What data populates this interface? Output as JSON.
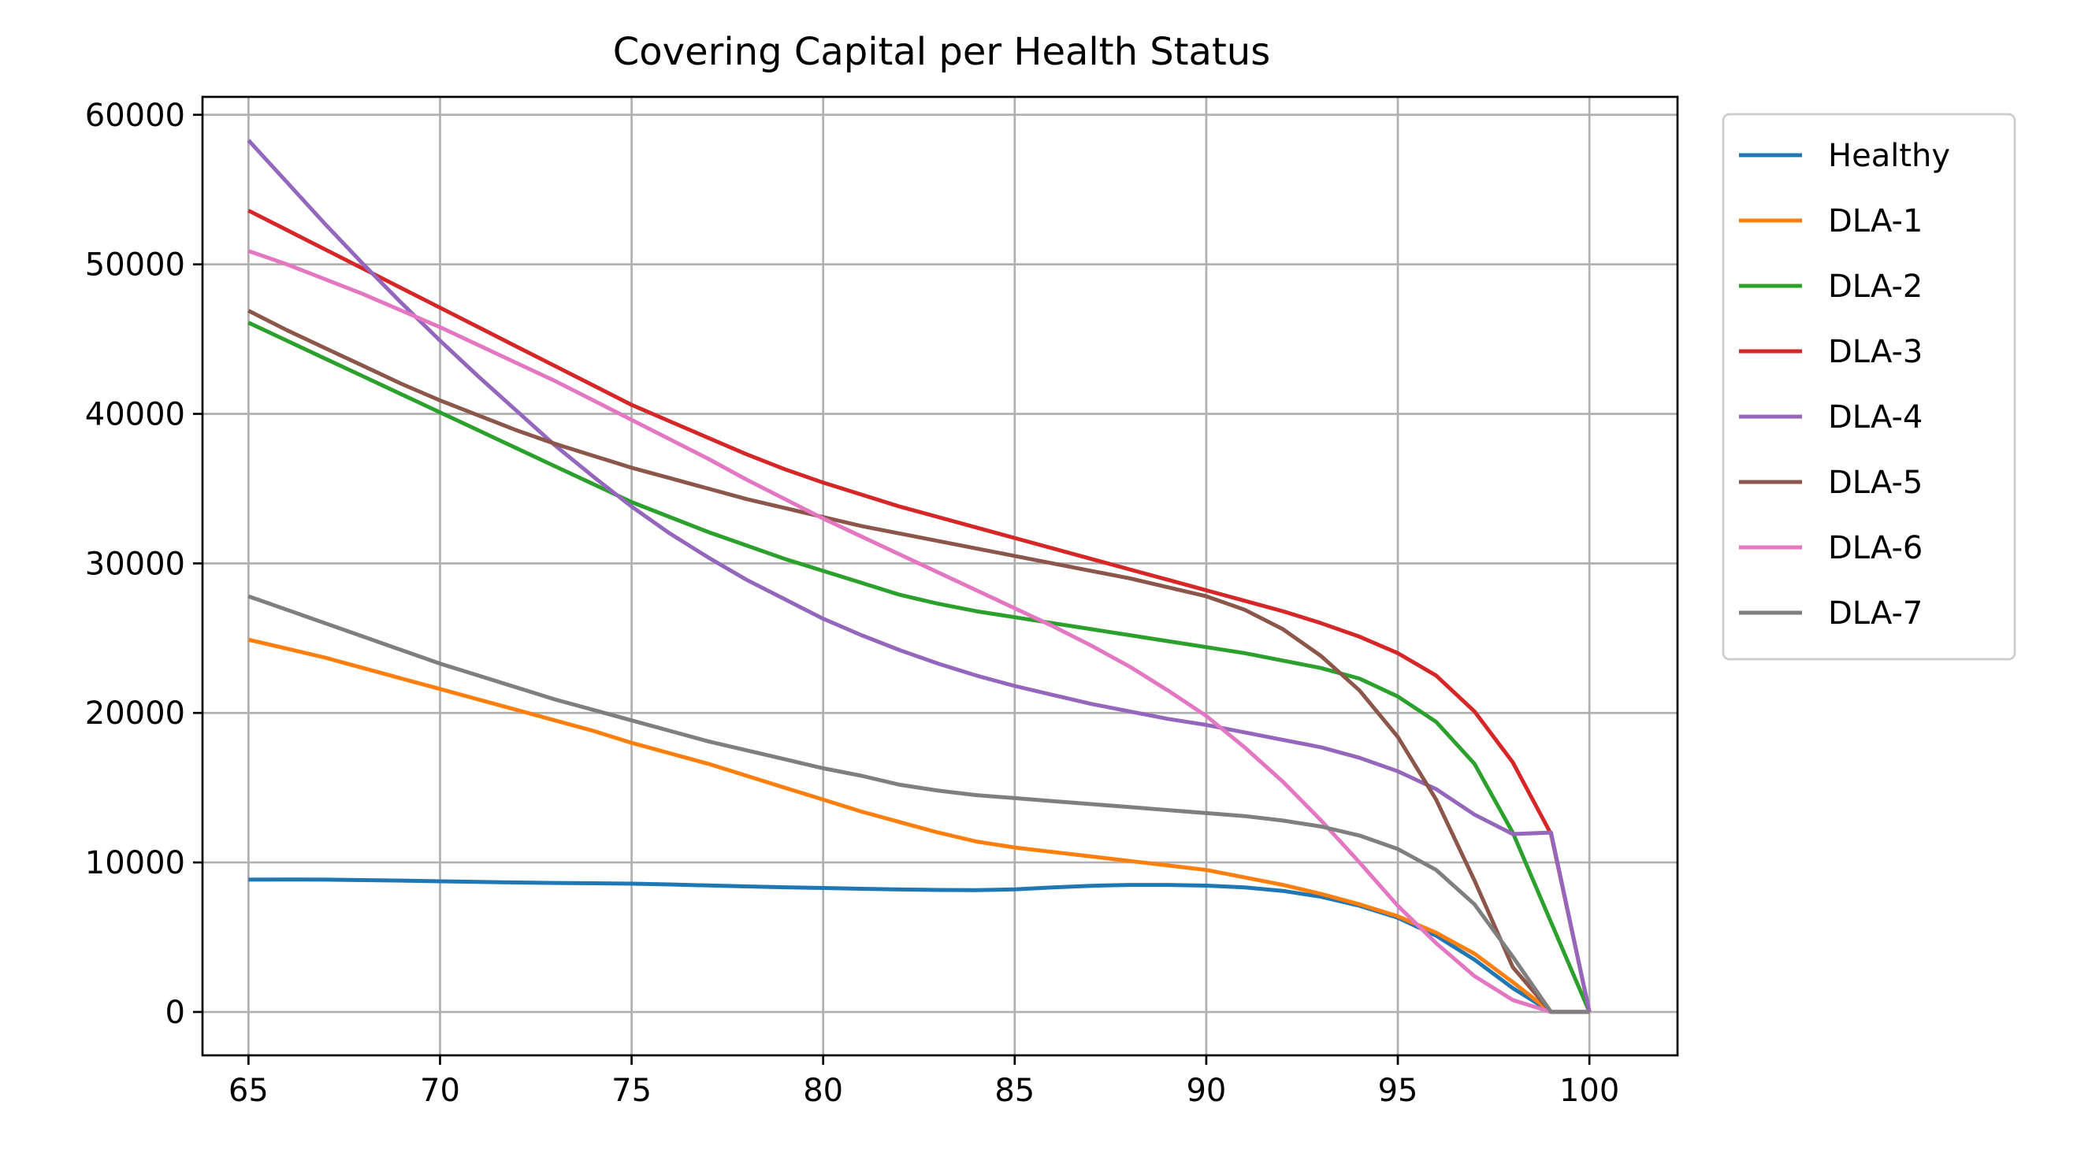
{
  "chart_data": {
    "type": "line",
    "title": "Covering Capital per Health Status",
    "xlabel": "",
    "ylabel": "",
    "xlim": [
      63.8,
      102.3
    ],
    "ylim": [
      -2900,
      61200
    ],
    "x_ticks": [
      65,
      70,
      75,
      80,
      85,
      90,
      95,
      100
    ],
    "y_ticks": [
      0,
      10000,
      20000,
      30000,
      40000,
      50000,
      60000
    ],
    "grid": true,
    "legend_position": "outside-right-top",
    "x": [
      65,
      66,
      67,
      68,
      69,
      70,
      71,
      72,
      73,
      74,
      75,
      76,
      77,
      78,
      79,
      80,
      81,
      82,
      83,
      84,
      85,
      86,
      87,
      88,
      89,
      90,
      91,
      92,
      93,
      94,
      95,
      96,
      97,
      98,
      99,
      100
    ],
    "series": [
      {
        "name": "Healthy",
        "color": "#1f77b4",
        "values": [
          8850,
          8860,
          8850,
          8820,
          8790,
          8740,
          8700,
          8660,
          8630,
          8610,
          8580,
          8530,
          8460,
          8400,
          8340,
          8290,
          8240,
          8190,
          8160,
          8150,
          8200,
          8330,
          8440,
          8500,
          8500,
          8450,
          8330,
          8100,
          7700,
          7100,
          6300,
          5100,
          3500,
          1600,
          0,
          0
        ]
      },
      {
        "name": "DLA-1",
        "color": "#ff7f0e",
        "values": [
          24900,
          24300,
          23700,
          23000,
          22300,
          21600,
          20900,
          20200,
          19500,
          18800,
          18000,
          17300,
          16600,
          15800,
          15000,
          14200,
          13400,
          12700,
          12000,
          11400,
          11000,
          10700,
          10400,
          10100,
          9800,
          9500,
          9000,
          8500,
          7900,
          7200,
          6400,
          5300,
          3900,
          2000,
          0,
          0
        ]
      },
      {
        "name": "DLA-2",
        "color": "#2ca02c",
        "values": [
          46100,
          44900,
          43700,
          42500,
          41300,
          40100,
          38900,
          37700,
          36500,
          35300,
          34100,
          33100,
          32100,
          31200,
          30300,
          29500,
          28700,
          27900,
          27300,
          26800,
          26400,
          26000,
          25600,
          25200,
          24800,
          24400,
          24000,
          23500,
          23000,
          22300,
          21100,
          19400,
          16600,
          12000,
          6000,
          0
        ]
      },
      {
        "name": "DLA-3",
        "color": "#d62728",
        "values": [
          53600,
          52300,
          51000,
          49700,
          48400,
          47100,
          45800,
          44500,
          43200,
          41900,
          40600,
          39500,
          38400,
          37300,
          36300,
          35400,
          34600,
          33800,
          33100,
          32400,
          31700,
          31000,
          30300,
          29600,
          28900,
          28200,
          27500,
          26800,
          26000,
          25100,
          24000,
          22500,
          20100,
          16700,
          11900,
          0
        ]
      },
      {
        "name": "DLA-4",
        "color": "#9467bd",
        "values": [
          58300,
          55500,
          52700,
          50000,
          47400,
          44900,
          42500,
          40200,
          37900,
          35800,
          33800,
          32000,
          30400,
          28900,
          27600,
          26300,
          25200,
          24200,
          23300,
          22500,
          21800,
          21200,
          20600,
          20100,
          19600,
          19200,
          18700,
          18200,
          17700,
          17000,
          16100,
          14900,
          13200,
          11900,
          12000,
          0
        ]
      },
      {
        "name": "DLA-5",
        "color": "#8c564b",
        "values": [
          46900,
          45600,
          44400,
          43200,
          42000,
          40900,
          39900,
          38900,
          38000,
          37200,
          36400,
          35700,
          35000,
          34300,
          33700,
          33100,
          32500,
          32000,
          31500,
          31000,
          30500,
          30000,
          29500,
          29000,
          28400,
          27800,
          26900,
          25600,
          23800,
          21500,
          18400,
          14200,
          8800,
          3000,
          0,
          0
        ]
      },
      {
        "name": "DLA-6",
        "color": "#e377c2",
        "values": [
          50900,
          50000,
          49000,
          48000,
          46900,
          45800,
          44600,
          43400,
          42200,
          40900,
          39600,
          38300,
          37000,
          35600,
          34300,
          33000,
          31800,
          30600,
          29400,
          28200,
          27000,
          25800,
          24500,
          23100,
          21500,
          19800,
          17700,
          15400,
          12800,
          10000,
          7100,
          4600,
          2400,
          800,
          0,
          0
        ]
      },
      {
        "name": "DLA-7",
        "color": "#7f7f7f",
        "values": [
          27800,
          26900,
          26000,
          25100,
          24200,
          23300,
          22500,
          21700,
          20900,
          20200,
          19500,
          18800,
          18100,
          17500,
          16900,
          16300,
          15800,
          15200,
          14800,
          14500,
          14300,
          14100,
          13900,
          13700,
          13500,
          13300,
          13100,
          12800,
          12400,
          11800,
          10900,
          9500,
          7200,
          3700,
          0,
          0
        ]
      }
    ]
  }
}
